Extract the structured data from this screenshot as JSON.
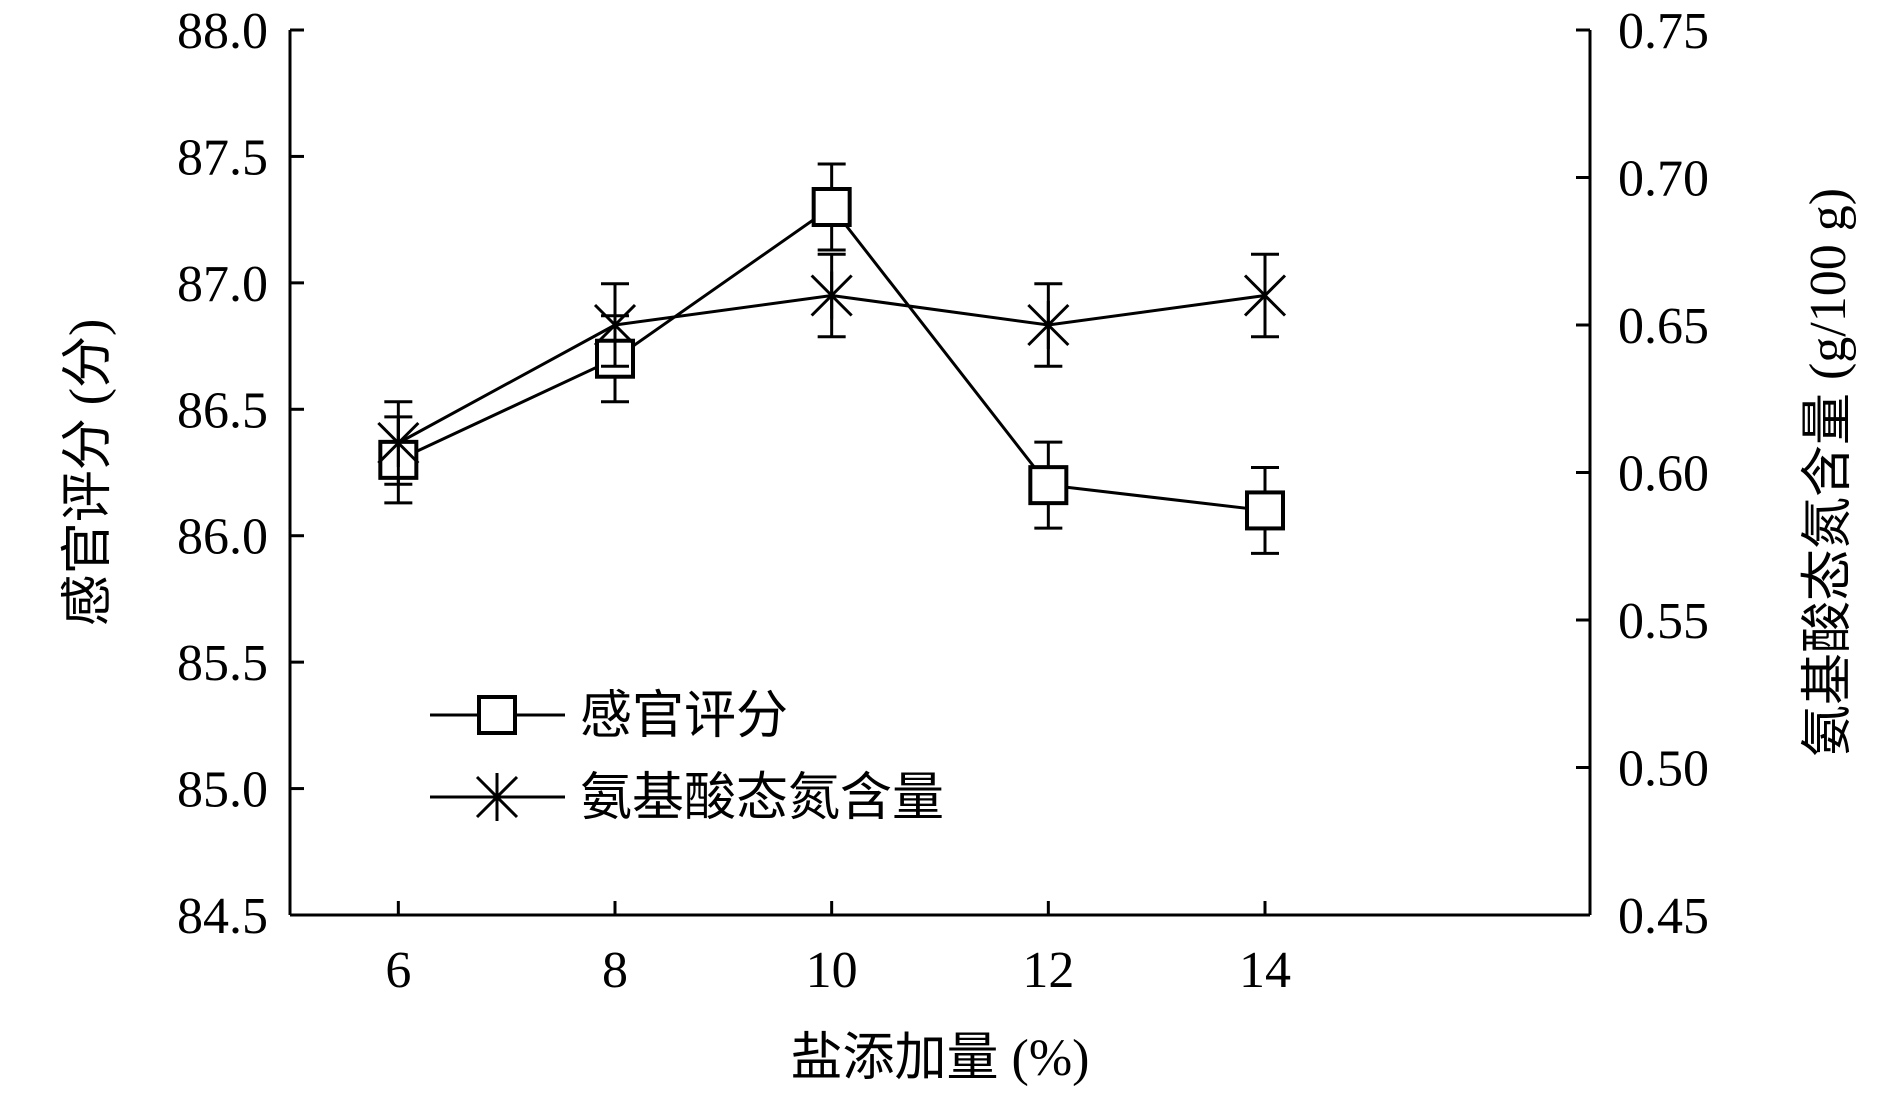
{
  "chart_data": {
    "type": "line",
    "xlabel": "盐添加量 (%)",
    "ylabel_left": "感官评分 (分)",
    "ylabel_right": "氨基酸态氮含量 (g/100 g)",
    "x": [
      6,
      8,
      10,
      12,
      14
    ],
    "x_ticks": [
      "6",
      "8",
      "10",
      "12",
      "14"
    ],
    "ylim_left": [
      84.5,
      88.0
    ],
    "ylim_right": [
      0.45,
      0.75
    ],
    "yticks_left": [
      "84.5",
      "85.0",
      "85.5",
      "86.0",
      "86.5",
      "87.0",
      "87.5",
      "88.0"
    ],
    "yticks_right": [
      "0.45",
      "0.50",
      "0.55",
      "0.60",
      "0.65",
      "0.70",
      "0.75"
    ],
    "grid": false,
    "legend_position": "lower-left",
    "series": [
      {
        "name": "感官评分",
        "axis": "left",
        "marker": "square",
        "values": [
          86.3,
          86.7,
          87.3,
          86.2,
          86.1
        ],
        "errors": [
          0.17,
          0.17,
          0.17,
          0.17,
          0.17
        ]
      },
      {
        "name": "氨基酸态氮含量",
        "axis": "right",
        "marker": "star",
        "values": [
          0.61,
          0.65,
          0.66,
          0.65,
          0.66
        ],
        "errors": [
          0.014,
          0.014,
          0.014,
          0.014,
          0.014
        ]
      }
    ]
  }
}
